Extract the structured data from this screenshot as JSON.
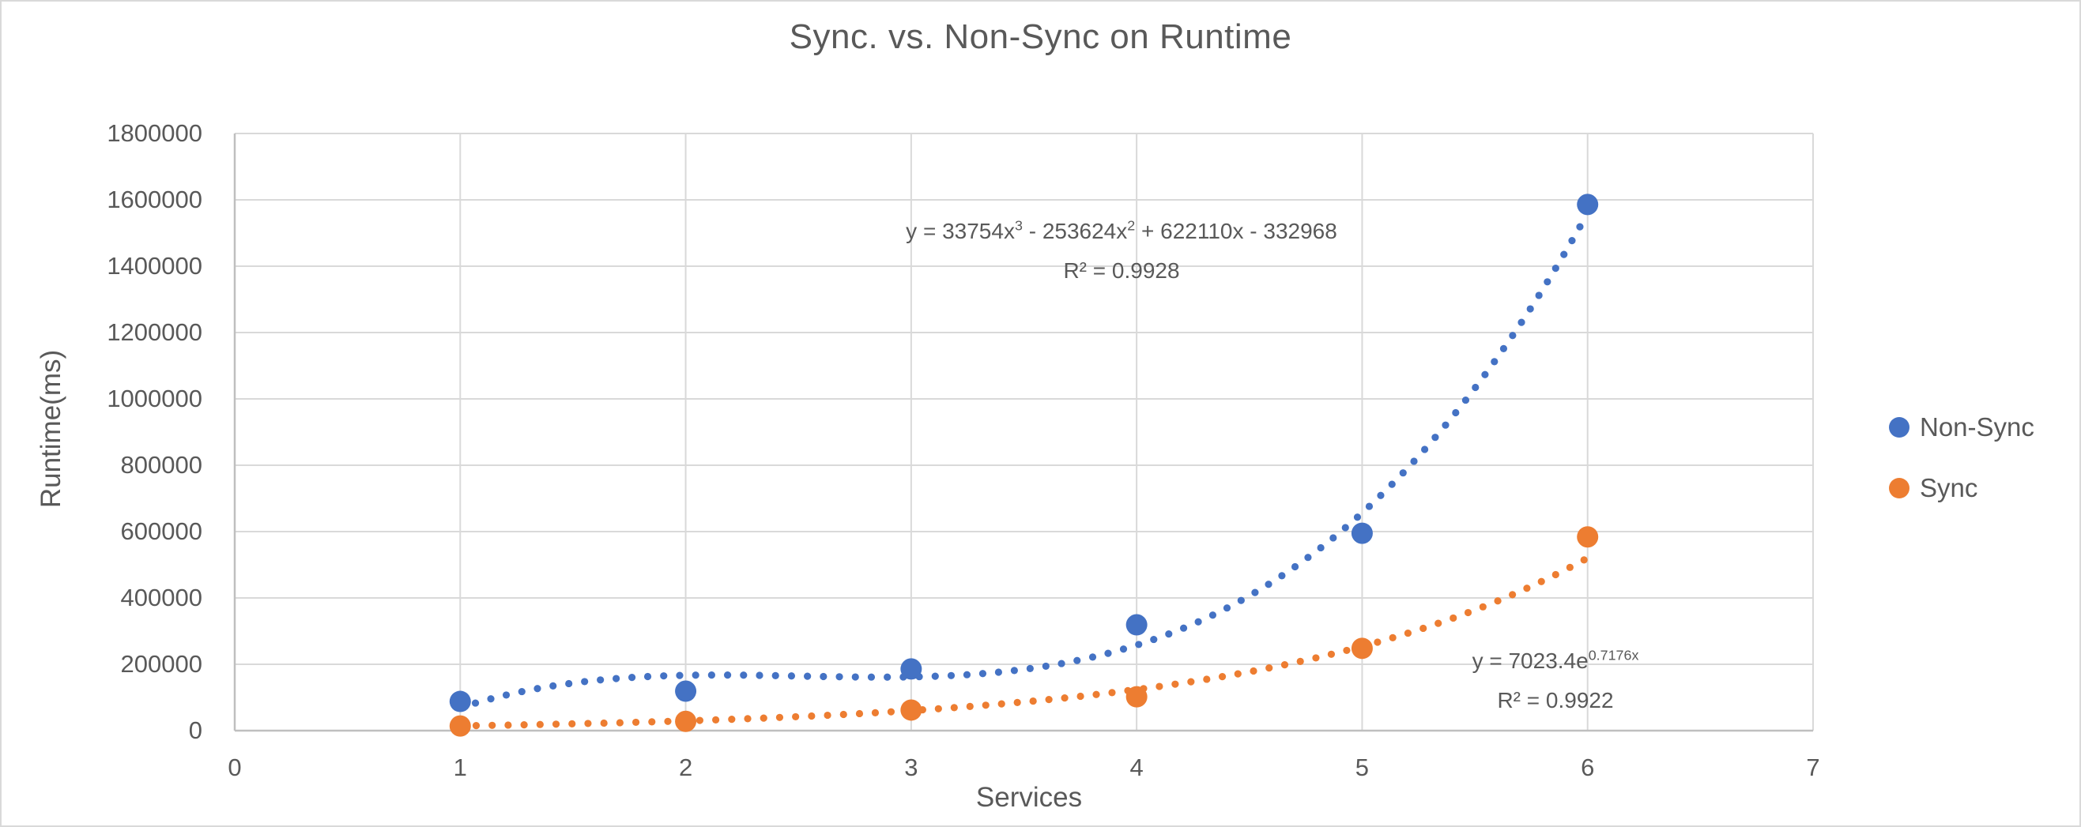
{
  "chart_data": {
    "type": "scatter",
    "title": "Sync. vs. Non-Sync on Runtime",
    "xlabel": "Services",
    "ylabel": "Runtime(ms)",
    "xlim": [
      0,
      7
    ],
    "ylim": [
      0,
      1800000
    ],
    "x_ticks": [
      "0",
      "1",
      "2",
      "3",
      "4",
      "5",
      "6",
      "7"
    ],
    "y_ticks": [
      "0",
      "200000",
      "400000",
      "600000",
      "800000",
      "1000000",
      "1200000",
      "1400000",
      "1600000",
      "1800000"
    ],
    "grid": true,
    "legend_position": "right",
    "series": [
      {
        "name": "Non-Sync",
        "color": "#4472C4",
        "x": [
          1,
          2,
          3,
          4,
          5,
          6
        ],
        "y": [
          88000,
          119000,
          186000,
          319000,
          595000,
          1586000
        ],
        "trendline": {
          "style": "dotted",
          "type": "polynomial",
          "degree": 3,
          "coefficients": [
            33754,
            -253624,
            622110,
            -332968
          ],
          "x_range": [
            1,
            6
          ],
          "equation": {
            "p1": "y = 33754x",
            "sup1": "3",
            "p2": " - 253624x",
            "sup2": "2",
            "p3": " + 622110x - 332968"
          },
          "r2_label": "R² = 0.9928"
        }
      },
      {
        "name": "Sync",
        "color": "#ED7D31",
        "x": [
          1,
          2,
          3,
          4,
          5,
          6
        ],
        "y": [
          14000,
          28000,
          62000,
          102000,
          248000,
          584000
        ],
        "trendline": {
          "style": "dotted",
          "type": "exponential",
          "a": 7023.4,
          "b": 0.7176,
          "x_range": [
            1,
            6
          ],
          "equation": {
            "p1": "y = 7023.4e",
            "sup1": "0.7176x"
          },
          "r2_label": "R² = 0.9922"
        }
      }
    ]
  },
  "colors": {
    "text": "#595959",
    "gridline": "#D9D9D9",
    "axis_line": "#BFBFBF",
    "background": "#FFFFFF",
    "frame_border": "#D9D9D9"
  }
}
